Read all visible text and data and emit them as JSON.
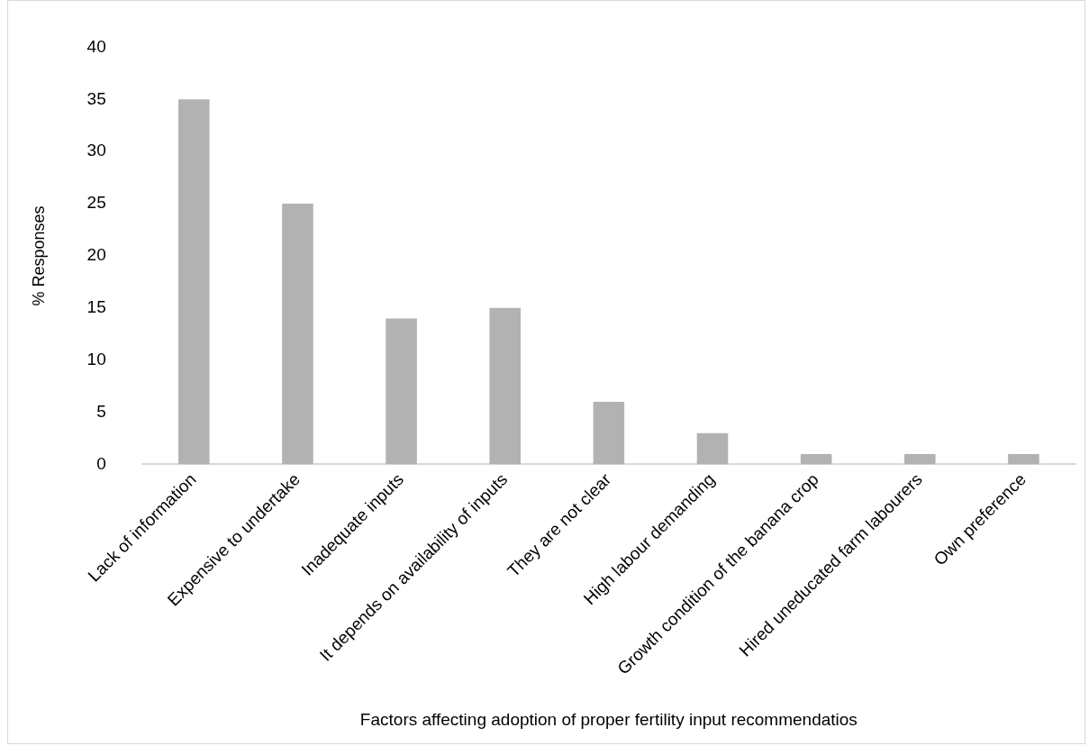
{
  "chart_data": {
    "type": "bar",
    "xlabel": "Factors affecting adoption of proper fertility input recommendatios",
    "ylabel": "% Responses",
    "categories": [
      "Lack of information",
      "Expensive to undertake",
      "Inadequate inputs",
      "It depends on availability of inputs",
      "They are not clear",
      "High labour demanding",
      "Growth condition of the banana crop",
      "Hired uneducated farm labourers",
      "Own preference"
    ],
    "values": [
      35,
      25,
      14,
      15,
      6,
      3,
      1,
      1,
      1
    ],
    "color": "#b2b2b2",
    "ylim": [
      0,
      40
    ],
    "yticks": [
      0,
      5,
      10,
      15,
      20,
      25,
      30,
      35,
      40
    ],
    "grid": false
  }
}
